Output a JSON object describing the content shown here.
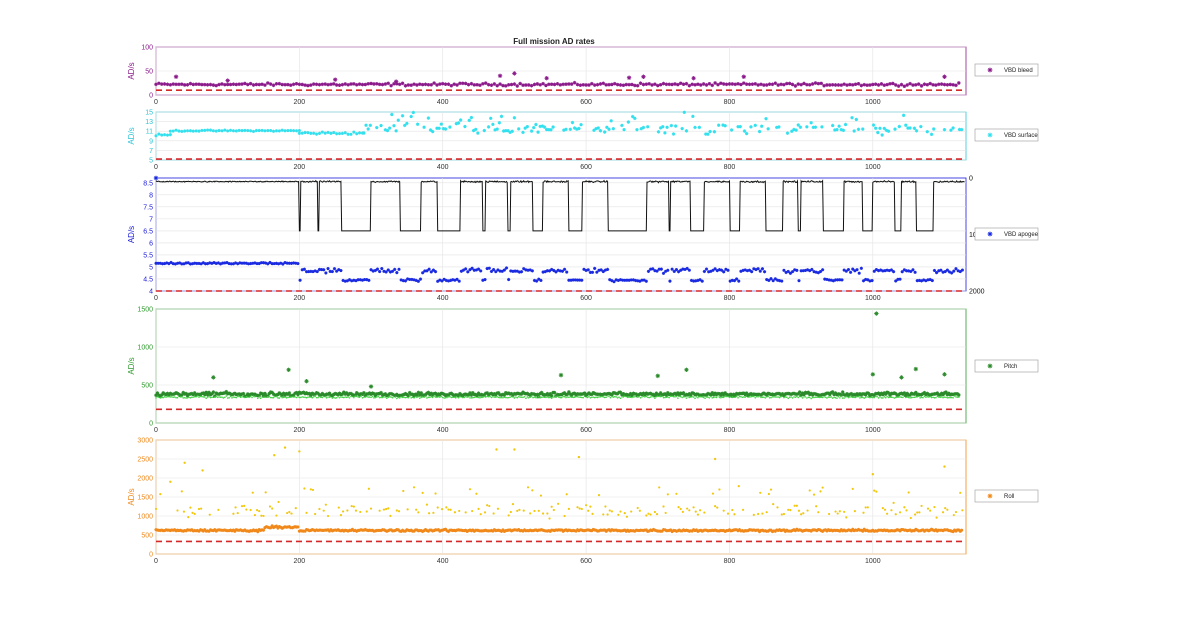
{
  "figure": {
    "title": "Full mission AD rates"
  },
  "chart_data": [
    {
      "type": "scatter",
      "name": "bleed",
      "ylabel": "AD/s",
      "color": "#8b1a8b",
      "xlim": [
        0,
        1130
      ],
      "ylim": [
        0,
        100
      ],
      "xticks": [
        "0",
        "200",
        "400",
        "600",
        "800",
        "1000"
      ],
      "yticks": [
        "0",
        "50",
        "100"
      ],
      "legend": "VBD bleed",
      "legend_placement": "right",
      "grid": true,
      "marker": "star",
      "threshold": 10,
      "threshold_color": "#d62728",
      "series": [
        {
          "label": "VBD bleed",
          "color": "#8b1a8b",
          "base": 22,
          "noise": 4,
          "outliers": [
            [
              28,
              38
            ],
            [
              100,
              30
            ],
            [
              250,
              32
            ],
            [
              335,
              28
            ],
            [
              480,
              40
            ],
            [
              500,
              45
            ],
            [
              545,
              35
            ],
            [
              660,
              36
            ],
            [
              680,
              38
            ],
            [
              750,
              35
            ],
            [
              820,
              38
            ],
            [
              1100,
              38
            ]
          ]
        }
      ]
    },
    {
      "type": "scatter",
      "name": "surface",
      "ylabel": "AD/s",
      "color": "#2bc4d6",
      "xlim": [
        0,
        1130
      ],
      "ylim": [
        5,
        15
      ],
      "xticks": [
        "0",
        "200",
        "400",
        "600",
        "800",
        "1000"
      ],
      "yticks": [
        "5",
        "7",
        "9",
        "11",
        "13",
        "15"
      ],
      "legend": "VBD surface",
      "legend_placement": "right",
      "grid": true,
      "marker": "star",
      "threshold": 5.2,
      "threshold_color": "#d62728",
      "series": [
        {
          "label": "VBD surface",
          "color": "#33e0ee",
          "segments": [
            [
              0,
              20,
              10.2,
              0.3
            ],
            [
              20,
              200,
              11.1,
              0.2
            ],
            [
              200,
              290,
              10.6,
              0.4
            ]
          ],
          "scatter_from": 290,
          "scatter_range": [
            9.5,
            15
          ],
          "base": 11.5
        }
      ]
    },
    {
      "type": "line",
      "name": "apogee",
      "ylabel": "AD/s",
      "color": "#1a1adc",
      "xlim": [
        0,
        1130
      ],
      "ylim": [
        4,
        8.7
      ],
      "xticks": [
        "0",
        "200",
        "400",
        "600",
        "800",
        "1000"
      ],
      "yticks": [
        "4",
        "4.5",
        "5",
        "5.5",
        "6",
        "6.5",
        "7",
        "7.5",
        "8",
        "8.5"
      ],
      "y2ticks": [
        "0",
        "1000",
        "2000"
      ],
      "legend": "VBD apogee",
      "legend_placement": "right",
      "grid": true,
      "marker": "star",
      "threshold": 4,
      "threshold_color": "#d62728",
      "series": [
        {
          "label": "VBD apogee",
          "color": "#1a2ae0",
          "high": 5.15,
          "low": 4.45,
          "pre": 5.15
        },
        {
          "label": "",
          "color": "#111111",
          "kind": "depth",
          "high": 8.55,
          "low": 6.5
        }
      ],
      "dives": [
        [
          202,
          225
        ],
        [
          228,
          258
        ],
        [
          300,
          340
        ],
        [
          370,
          392
        ],
        [
          425,
          455
        ],
        [
          460,
          490
        ],
        [
          495,
          525
        ],
        [
          540,
          575
        ],
        [
          595,
          630
        ],
        [
          685,
          715
        ],
        [
          718,
          745
        ],
        [
          765,
          800
        ],
        [
          815,
          850
        ],
        [
          875,
          895
        ],
        [
          900,
          930
        ],
        [
          960,
          985
        ],
        [
          1000,
          1030
        ],
        [
          1040,
          1060
        ],
        [
          1085,
          1130
        ]
      ]
    },
    {
      "type": "scatter",
      "name": "pitch",
      "ylabel": "AD/s",
      "color": "#2e9a2e",
      "xlim": [
        0,
        1130
      ],
      "ylim": [
        0,
        1500
      ],
      "xticks": [
        "0",
        "200",
        "400",
        "600",
        "800",
        "1000"
      ],
      "yticks": [
        "0",
        "500",
        "1000",
        "1500"
      ],
      "legend": "Pitch",
      "legend_placement": "right",
      "grid": true,
      "marker": "star",
      "threshold": 180,
      "threshold_color": "#d62728",
      "series": [
        {
          "label": "Pitch",
          "color": "#2a8a2a",
          "base": 380,
          "noise": 35,
          "outliers": [
            [
              80,
              600
            ],
            [
              185,
              700
            ],
            [
              210,
              550
            ],
            [
              300,
              480
            ],
            [
              565,
              630
            ],
            [
              700,
              620
            ],
            [
              740,
              700
            ],
            [
              1000,
              640
            ],
            [
              1005,
              1440
            ],
            [
              1040,
              600
            ],
            [
              1060,
              710
            ],
            [
              1100,
              640
            ]
          ]
        }
      ]
    },
    {
      "type": "scatter",
      "name": "roll",
      "ylabel": "AD/s",
      "color": "#f0881a",
      "xlim": [
        0,
        1130
      ],
      "ylim": [
        0,
        3000
      ],
      "xticks": [
        "0",
        "200",
        "400",
        "600",
        "800",
        "1000"
      ],
      "yticks": [
        "0",
        "500",
        "1000",
        "1500",
        "2000",
        "2500",
        "3000"
      ],
      "legend": "Roll",
      "legend_placement": "right",
      "grid": true,
      "marker": "star",
      "threshold": 330,
      "threshold_color": "#d62728",
      "series": [
        {
          "label": "Roll",
          "color": "#f0881a",
          "base": 620,
          "noise": 40
        },
        {
          "label": "",
          "color": "#f2c80f",
          "scatter_range": [
            950,
            2300
          ],
          "base": 1150,
          "outliers": [
            [
              20,
              1900
            ],
            [
              40,
              2400
            ],
            [
              65,
              2200
            ],
            [
              165,
              2600
            ],
            [
              180,
              2800
            ],
            [
              200,
              2700
            ],
            [
              475,
              2750
            ],
            [
              500,
              2750
            ],
            [
              590,
              2550
            ],
            [
              780,
              2500
            ],
            [
              1000,
              2100
            ],
            [
              1100,
              2300
            ]
          ]
        }
      ]
    }
  ]
}
